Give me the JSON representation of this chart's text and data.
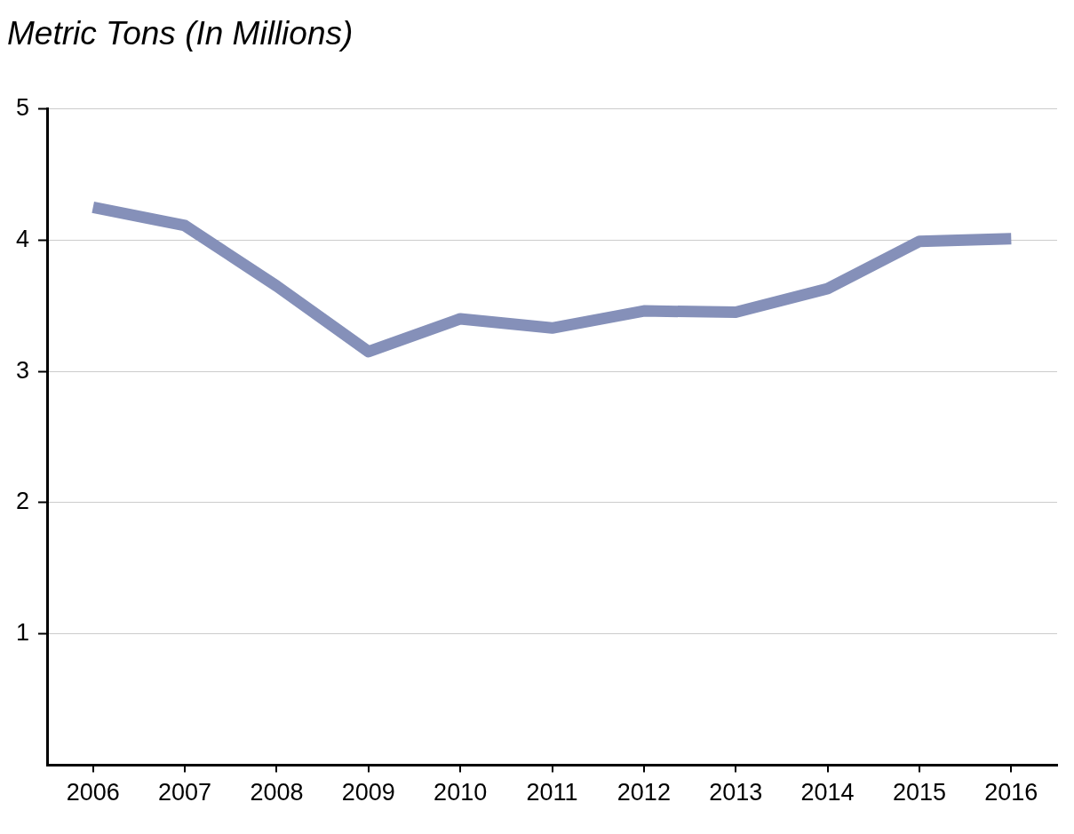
{
  "chart_data": {
    "type": "line",
    "ylabel": "Metric Tons (In Millions)",
    "categories": [
      "2006",
      "2007",
      "2008",
      "2009",
      "2010",
      "2011",
      "2012",
      "2013",
      "2014",
      "2015",
      "2016"
    ],
    "series": [
      {
        "color": "#8590b9",
        "values": [
          4.25,
          4.11,
          3.65,
          3.15,
          3.4,
          3.33,
          3.46,
          3.45,
          3.63,
          3.99,
          4.01
        ]
      }
    ],
    "ylim": [
      0,
      5
    ],
    "yticks": [
      1,
      2,
      3,
      4,
      5
    ],
    "grid": "y",
    "legend": false,
    "marker": "none",
    "line_style": "solid"
  }
}
